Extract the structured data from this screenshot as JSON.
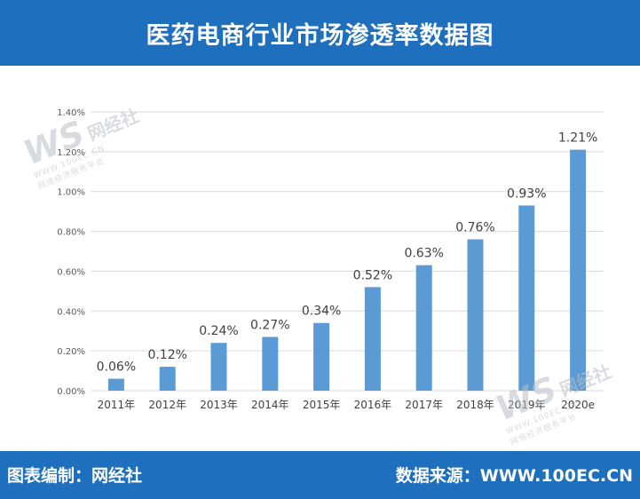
{
  "header": {
    "title": "医药电商行业市场渗透率数据图"
  },
  "footer": {
    "left": "图表编制：网经社",
    "right": "数据来源：WWW.100EC.CN"
  },
  "watermark": {
    "logo": "WS",
    "name": "网经社",
    "url": "WWW.100EC.CN",
    "tagline": "网络经济服务平台"
  },
  "colors": {
    "header": "#1f6fbf",
    "bar": "#5b9bd5",
    "grid": "#d9d9d9"
  },
  "chart_data": {
    "type": "bar",
    "categories": [
      "2011年",
      "2012年",
      "2013年",
      "2014年",
      "2015年",
      "2016年",
      "2017年",
      "2018年",
      "2019年",
      "2020e"
    ],
    "values": [
      0.06,
      0.12,
      0.24,
      0.27,
      0.34,
      0.52,
      0.63,
      0.76,
      0.93,
      1.21
    ],
    "data_labels": [
      "0.06%",
      "0.12%",
      "0.24%",
      "0.27%",
      "0.34%",
      "0.52%",
      "0.63%",
      "0.76%",
      "0.93%",
      "1.21%"
    ],
    "y_ticks": [
      "0.00%",
      "0.20%",
      "0.40%",
      "0.60%",
      "0.80%",
      "1.00%",
      "1.20%",
      "1.40%"
    ],
    "ylim": [
      0,
      1.4
    ],
    "grid": true,
    "title": "",
    "xlabel": "",
    "ylabel": ""
  }
}
